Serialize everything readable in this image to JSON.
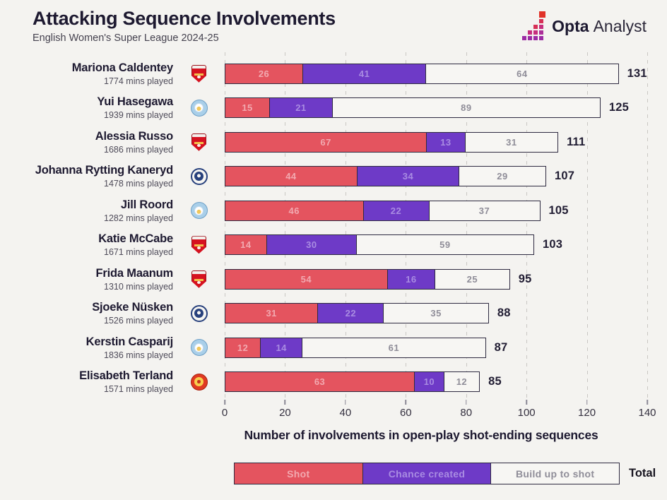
{
  "header": {
    "title": "Attacking Sequence Involvements",
    "subtitle": "English Women's Super League 2024-25",
    "logo_bold": "Opta",
    "logo_regular": "Analyst"
  },
  "colors": {
    "background": "#f4f3f0",
    "shot": "#e4545f",
    "shot_label": "#f2a9b0",
    "chance_created": "#6e3ac7",
    "chance_created_label": "#a98ce2",
    "build_up": "#f7f6f3",
    "build_up_label": "#8f8d98",
    "segment_border": "#2e2a40",
    "total_text": "#211d33",
    "gridline": "#c9c7c3",
    "title_text": "#1d1930"
  },
  "chart_data": {
    "type": "bar",
    "orientation": "horizontal",
    "stacked": true,
    "title": "Attacking Sequence Involvements",
    "subtitle": "English Women's Super League 2024-25",
    "xlabel": "Number of involvements in open-play shot-ending sequences",
    "xlim": [
      0,
      140
    ],
    "xticks": [
      0,
      20,
      40,
      60,
      80,
      100,
      120,
      140
    ],
    "grid": "dashed-vertical",
    "legend_position": "bottom",
    "legend": [
      "Shot",
      "Chance created",
      "Build up to shot"
    ],
    "total_label": "Total",
    "series": [
      {
        "name": "Shot",
        "values": [
          26,
          15,
          67,
          44,
          46,
          14,
          54,
          31,
          12,
          63
        ]
      },
      {
        "name": "Chance created",
        "values": [
          41,
          21,
          13,
          34,
          22,
          30,
          16,
          22,
          14,
          10
        ]
      },
      {
        "name": "Build up to shot",
        "values": [
          64,
          89,
          31,
          29,
          37,
          59,
          25,
          35,
          61,
          12
        ]
      }
    ],
    "players": [
      {
        "name": "Mariona Caldentey",
        "mins": "1774 mins played",
        "team": "arsenal",
        "shot": 26,
        "chance_created": 41,
        "build_up": 64,
        "total": 131
      },
      {
        "name": "Yui Hasegawa",
        "mins": "1939 mins played",
        "team": "mancity",
        "shot": 15,
        "chance_created": 21,
        "build_up": 89,
        "total": 125
      },
      {
        "name": "Alessia Russo",
        "mins": "1686 mins played",
        "team": "arsenal",
        "shot": 67,
        "chance_created": 13,
        "build_up": 31,
        "total": 111
      },
      {
        "name": "Johanna Rytting Kaneryd",
        "mins": "1478 mins played",
        "team": "chelsea",
        "shot": 44,
        "chance_created": 34,
        "build_up": 29,
        "total": 107
      },
      {
        "name": "Jill Roord",
        "mins": "1282 mins played",
        "team": "mancity",
        "shot": 46,
        "chance_created": 22,
        "build_up": 37,
        "total": 105
      },
      {
        "name": "Katie McCabe",
        "mins": "1671 mins played",
        "team": "arsenal",
        "shot": 14,
        "chance_created": 30,
        "build_up": 59,
        "total": 103
      },
      {
        "name": "Frida Maanum",
        "mins": "1310 mins played",
        "team": "arsenal",
        "shot": 54,
        "chance_created": 16,
        "build_up": 25,
        "total": 95
      },
      {
        "name": "Sjoeke Nüsken",
        "mins": "1526 mins played",
        "team": "chelsea",
        "shot": 31,
        "chance_created": 22,
        "build_up": 35,
        "total": 88
      },
      {
        "name": "Kerstin Casparij",
        "mins": "1836 mins played",
        "team": "mancity",
        "shot": 12,
        "chance_created": 14,
        "build_up": 61,
        "total": 87
      },
      {
        "name": "Elisabeth Terland",
        "mins": "1571 mins played",
        "team": "manutd",
        "shot": 63,
        "chance_created": 10,
        "build_up": 12,
        "total": 85
      }
    ]
  }
}
